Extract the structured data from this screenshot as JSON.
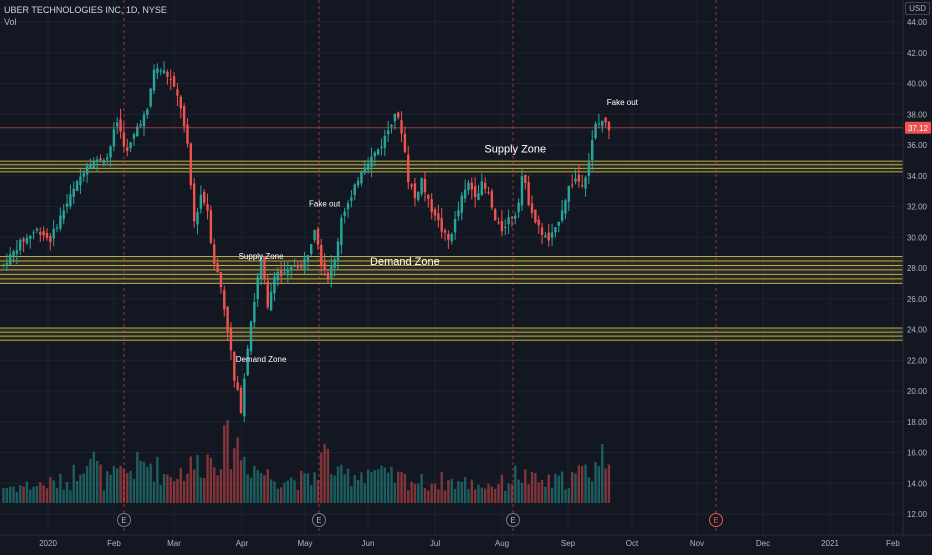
{
  "header": {
    "symbol_line": "UBER TECHNOLOGIES INC, 1D, NYSE",
    "volume_label": "Vol",
    "currency": "USD"
  },
  "colors": {
    "background": "#131722",
    "grid": "#1e222d",
    "up": "#26a69a",
    "down": "#ef5350",
    "zone": "#d6c54a",
    "last_price_line": "#ef5350",
    "session_line": "#ef5350"
  },
  "chart_data": {
    "type": "candlestick",
    "title": "UBER TECHNOLOGIES INC, 1D, NYSE",
    "ylim": [
      11.2,
      45.0
    ],
    "y_ticks": [
      "44.00",
      "42.00",
      "40.00",
      "38.00",
      "36.00",
      "34.00",
      "32.00",
      "30.00",
      "28.00",
      "26.00",
      "24.00",
      "22.00",
      "20.00",
      "18.00",
      "16.00",
      "14.00",
      "12.00"
    ],
    "x_ticks": [
      "2020",
      "Feb",
      "Mar",
      "Apr",
      "May",
      "Jun",
      "Jul",
      "Aug",
      "Sep",
      "Oct",
      "Nov",
      "Dec",
      "2021",
      "Feb"
    ],
    "last_price": "37.12",
    "price_anchors": [
      [
        0,
        28.2
      ],
      [
        5,
        29.6
      ],
      [
        10,
        30.5
      ],
      [
        14,
        29.8
      ],
      [
        18,
        31.8
      ],
      [
        22,
        33.5
      ],
      [
        25,
        34.8
      ],
      [
        28,
        35.0
      ],
      [
        31,
        35.2
      ],
      [
        34,
        37.5
      ],
      [
        37,
        35.5
      ],
      [
        40,
        37.2
      ],
      [
        43,
        38.2
      ],
      [
        45,
        41.0
      ],
      [
        48,
        40.8
      ],
      [
        50,
        40.2
      ],
      [
        53,
        38.5
      ],
      [
        55,
        35.5
      ],
      [
        57,
        31.0
      ],
      [
        59,
        32.8
      ],
      [
        61,
        31.8
      ],
      [
        63,
        28.5
      ],
      [
        65,
        26.8
      ],
      [
        67,
        24.2
      ],
      [
        69,
        20.5
      ],
      [
        71,
        19.0
      ],
      [
        73,
        23.5
      ],
      [
        75,
        26.0
      ],
      [
        77,
        28.5
      ],
      [
        79,
        25.0
      ],
      [
        81,
        28.0
      ],
      [
        83,
        27.5
      ],
      [
        85,
        27.8
      ],
      [
        87,
        28.2
      ],
      [
        89,
        28.0
      ],
      [
        91,
        29.0
      ],
      [
        93,
        31.0
      ],
      [
        95,
        28.5
      ],
      [
        97,
        27.5
      ],
      [
        99,
        28.5
      ],
      [
        101,
        31.5
      ],
      [
        104,
        32.5
      ],
      [
        107,
        34.5
      ],
      [
        110,
        35.2
      ],
      [
        113,
        36.0
      ],
      [
        115,
        37.0
      ],
      [
        117,
        38.2
      ],
      [
        119,
        37.0
      ],
      [
        121,
        34.0
      ],
      [
        123,
        32.5
      ],
      [
        125,
        33.8
      ],
      [
        127,
        32.2
      ],
      [
        129,
        31.5
      ],
      [
        131,
        30.5
      ],
      [
        133,
        29.8
      ],
      [
        135,
        31.0
      ],
      [
        137,
        32.5
      ],
      [
        139,
        33.5
      ],
      [
        141,
        32.8
      ],
      [
        143,
        33.4
      ],
      [
        145,
        32.8
      ],
      [
        147,
        31.0
      ],
      [
        149,
        30.5
      ],
      [
        151,
        31.2
      ],
      [
        153,
        31.5
      ],
      [
        155,
        34.0
      ],
      [
        157,
        32.5
      ],
      [
        159,
        31.0
      ],
      [
        161,
        30.3
      ],
      [
        163,
        29.8
      ],
      [
        165,
        30.5
      ],
      [
        167,
        32.0
      ],
      [
        169,
        33.2
      ],
      [
        171,
        33.8
      ],
      [
        173,
        33.5
      ],
      [
        175,
        35.0
      ],
      [
        177,
        37.2
      ],
      [
        179,
        37.6
      ],
      [
        181,
        37.12
      ]
    ],
    "volume_anchors": [
      [
        0,
        0.16
      ],
      [
        10,
        0.18
      ],
      [
        20,
        0.22
      ],
      [
        25,
        0.55
      ],
      [
        30,
        0.22
      ],
      [
        36,
        0.3
      ],
      [
        40,
        0.36
      ],
      [
        44,
        0.4
      ],
      [
        48,
        0.28
      ],
      [
        52,
        0.3
      ],
      [
        56,
        0.36
      ],
      [
        60,
        0.42
      ],
      [
        63,
        0.48
      ],
      [
        66,
        0.55
      ],
      [
        69,
        0.62
      ],
      [
        72,
        0.45
      ],
      [
        76,
        0.34
      ],
      [
        80,
        0.26
      ],
      [
        86,
        0.24
      ],
      [
        92,
        0.22
      ],
      [
        96,
        0.5
      ],
      [
        100,
        0.26
      ],
      [
        106,
        0.3
      ],
      [
        110,
        0.34
      ],
      [
        114,
        0.26
      ],
      [
        120,
        0.24
      ],
      [
        126,
        0.2
      ],
      [
        132,
        0.22
      ],
      [
        138,
        0.2
      ],
      [
        144,
        0.18
      ],
      [
        150,
        0.2
      ],
      [
        154,
        0.3
      ],
      [
        158,
        0.22
      ],
      [
        164,
        0.2
      ],
      [
        170,
        0.26
      ],
      [
        176,
        0.34
      ],
      [
        180,
        0.5
      ]
    ],
    "zones": [
      {
        "lo": 34.25,
        "hi": 34.95,
        "lines": 4
      },
      {
        "lo": 27.0,
        "hi": 28.75,
        "lines": 7
      },
      {
        "lo": 23.3,
        "hi": 24.1,
        "lines": 4
      }
    ],
    "annotations": [
      {
        "text": "Supply Zone",
        "day": 153,
        "price": 35.5,
        "size": 11
      },
      {
        "text": "Demand Zone",
        "day": 120,
        "price": 28.2,
        "size": 11
      },
      {
        "text": "Supply Zone",
        "day": 77,
        "price": 28.6,
        "size": 8
      },
      {
        "text": "Demand Zone",
        "day": 77,
        "price": 21.9,
        "size": 8
      },
      {
        "text": "Fake out",
        "day": 96,
        "price": 32.0,
        "size": 8
      },
      {
        "text": "Fake out",
        "day": 185,
        "price": 38.6,
        "size": 8
      }
    ],
    "earnings_markers": [
      "E",
      "E",
      "E",
      "E"
    ]
  }
}
